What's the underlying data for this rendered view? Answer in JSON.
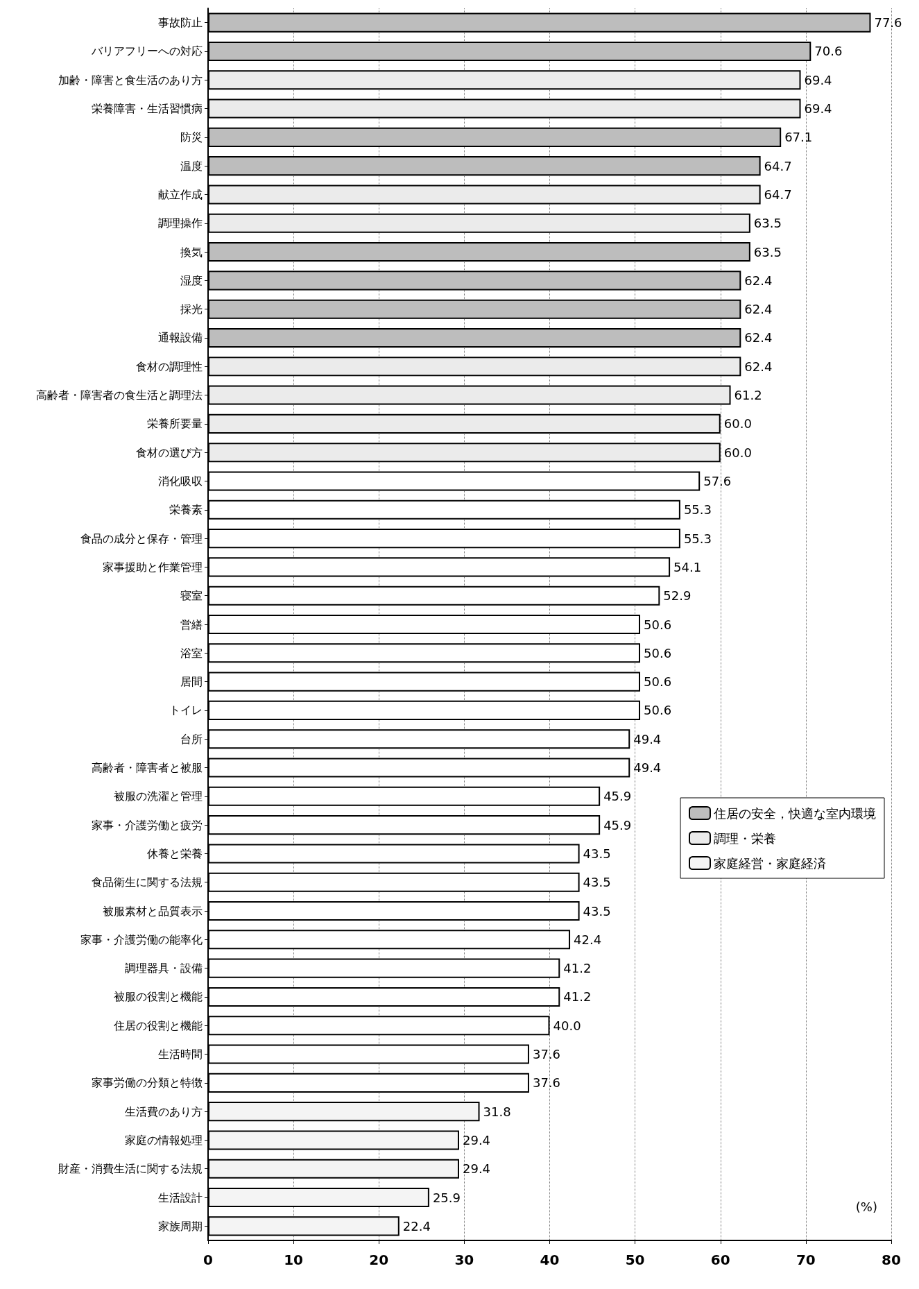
{
  "chart_data": {
    "type": "bar",
    "orientation": "horizontal",
    "stacked": true,
    "categories": [
      "事故防止",
      "バリアフリーへの対応",
      "加齢・障害と食生活のあり方",
      "栄養障害・生活習慣病",
      "防災",
      "温度",
      "献立作成",
      "調理操作",
      "換気",
      "湿度",
      "採光",
      "通報設備",
      "食材の調理性",
      "高齢者・障害者の食生活と調理法",
      "栄養所要量",
      "食材の選び方",
      "消化吸収",
      "栄養素",
      "食品の成分と保存・管理",
      "家事援助と作業管理",
      "寝室",
      "営繕",
      "浴室",
      "居間",
      "トイレ",
      "台所",
      "高齢者・障害者と被服",
      "被服の洗濯と管理",
      "家事・介護労働と疲労",
      "休養と栄養",
      "食品衛生に関する法規",
      "被服素材と品質表示",
      "家事・介護労働の能率化",
      "調理器具・設備",
      "被服の役割と機能",
      "住居の役割と機能",
      "生活時間",
      "家事労働の分類と特徴",
      "生活費のあり方",
      "家庭の情報処理",
      "財産・消費生活に関する法規",
      "生活設計",
      "家族周期"
    ],
    "series": [
      {
        "name": "住居の安全，快適な室内環境",
        "color": "#bdbdbd",
        "values": [
          77.6,
          70.6,
          null,
          null,
          67.1,
          64.7,
          null,
          null,
          63.5,
          62.4,
          62.4,
          62.4,
          null,
          null,
          null,
          null,
          null,
          null,
          null,
          null,
          null,
          null,
          null,
          null,
          null,
          null,
          null,
          null,
          null,
          null,
          null,
          null,
          null,
          null,
          null,
          null,
          null,
          null,
          null,
          null,
          null,
          null,
          null
        ],
        "value_labels": [
          "77.6",
          "70.6",
          null,
          null,
          "67.1",
          "64.7",
          null,
          null,
          "63.5",
          "62.4",
          "62.4",
          "62.4",
          null,
          null,
          null,
          null,
          null,
          null,
          null,
          null,
          null,
          null,
          null,
          null,
          null,
          null,
          null,
          null,
          null,
          null,
          null,
          null,
          null,
          null,
          null,
          null,
          null,
          null,
          null,
          null,
          null,
          null,
          null
        ]
      },
      {
        "name": "調理・栄養",
        "color": "#ebebeb",
        "values": [
          null,
          null,
          69.4,
          69.4,
          null,
          null,
          64.7,
          63.5,
          null,
          null,
          null,
          null,
          62.4,
          61.2,
          60.0,
          60.0,
          null,
          null,
          null,
          null,
          null,
          null,
          null,
          null,
          null,
          null,
          null,
          null,
          null,
          null,
          null,
          null,
          null,
          null,
          null,
          null,
          null,
          null,
          null,
          null,
          null,
          null,
          null
        ],
        "value_labels": [
          null,
          null,
          "69.4",
          "69.4",
          null,
          null,
          "64.7",
          "63.5",
          null,
          null,
          null,
          null,
          "62.4",
          "61.2",
          "60.0",
          "60.0",
          null,
          null,
          null,
          null,
          null,
          null,
          null,
          null,
          null,
          null,
          null,
          null,
          null,
          null,
          null,
          null,
          null,
          null,
          null,
          null,
          null,
          null,
          null,
          null,
          null,
          null,
          null
        ]
      },
      {
        "color": "#ffffff",
        "values": [
          null,
          null,
          null,
          null,
          null,
          null,
          null,
          null,
          null,
          null,
          null,
          null,
          null,
          null,
          null,
          null,
          57.6,
          55.3,
          55.3,
          54.1,
          52.9,
          50.6,
          50.6,
          50.6,
          50.6,
          49.4,
          49.4,
          45.9,
          45.9,
          43.5,
          43.5,
          43.5,
          42.4,
          41.2,
          41.2,
          40.0,
          37.6,
          37.6,
          null,
          null,
          null,
          null,
          null
        ],
        "value_labels": [
          null,
          null,
          null,
          null,
          null,
          null,
          null,
          null,
          null,
          null,
          null,
          null,
          null,
          null,
          null,
          null,
          "57.6",
          "55.3",
          "55.3",
          "54.1",
          "52.9",
          "50.6",
          "50.6",
          "50.6",
          "50.6",
          "49.4",
          "49.4",
          "45.9",
          "45.9",
          "43.5",
          "43.5",
          "43.5",
          "42.4",
          "41.2",
          "41.2",
          "40.0",
          "37.6",
          "37.6",
          null,
          null,
          null,
          null,
          null
        ]
      },
      {
        "name": "家庭経営・家庭経済",
        "color": "#f4f4f4",
        "values": [
          null,
          null,
          null,
          null,
          null,
          null,
          null,
          null,
          null,
          null,
          null,
          null,
          null,
          null,
          null,
          null,
          null,
          null,
          null,
          null,
          null,
          null,
          null,
          null,
          null,
          null,
          null,
          null,
          null,
          null,
          null,
          null,
          null,
          null,
          null,
          null,
          null,
          null,
          31.8,
          29.4,
          29.4,
          25.9,
          22.4
        ],
        "value_labels": [
          null,
          null,
          null,
          null,
          null,
          null,
          null,
          null,
          null,
          null,
          null,
          null,
          null,
          null,
          null,
          null,
          null,
          null,
          null,
          null,
          null,
          null,
          null,
          null,
          null,
          null,
          null,
          null,
          null,
          null,
          null,
          null,
          null,
          null,
          null,
          null,
          null,
          null,
          "31.8",
          "29.4",
          "29.4",
          "25.9",
          "22.4"
        ]
      }
    ],
    "xlim": [
      0,
      80
    ],
    "xticks": [
      0,
      10,
      20,
      30,
      40,
      50,
      60,
      70,
      80
    ],
    "grid": "x",
    "legend": "right",
    "annotations": [
      "(%)"
    ]
  }
}
